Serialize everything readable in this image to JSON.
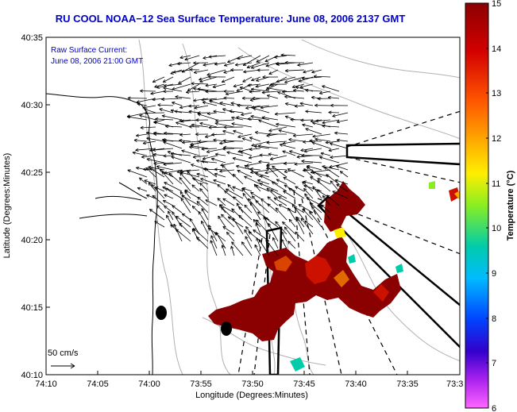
{
  "title": "RU COOL  NOAA−12  Sea Surface Temperature:  June 08, 2006 2137 GMT",
  "annotation": {
    "line1": "Raw Surface Current:",
    "line2": "June 08, 2006 21:00 GMT"
  },
  "scale": {
    "label": "50 cm/s"
  },
  "axes": {
    "xlabel": "Longitude (Degrees:Minutes)",
    "ylabel": "Latitude (Degrees:Minutes)",
    "xticks": [
      "74:10",
      "74:05",
      "74:00",
      "73:55",
      "73:50",
      "73:45",
      "73:40",
      "73:35",
      "73:3"
    ],
    "yticks": [
      "40:35",
      "40:30",
      "40:25",
      "40:20",
      "40:15",
      "40:10"
    ]
  },
  "colorbar": {
    "label": "Temperature (°C)",
    "ticks": [
      "15",
      "14",
      "13",
      "12",
      "11",
      "10",
      "9",
      "8",
      "7",
      "6"
    ],
    "min": 6,
    "max": 15
  },
  "colors": {
    "title": "#0000cc",
    "annotation": "#0000cc",
    "sst_warm": "#8b0000",
    "sst_hot": "#cc1100"
  }
}
